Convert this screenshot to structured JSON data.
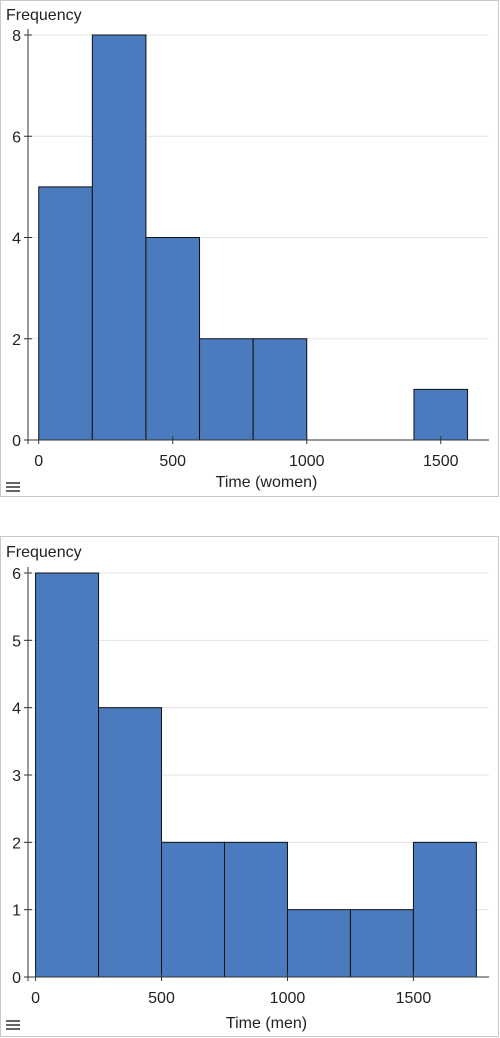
{
  "chart_data": [
    {
      "type": "bar",
      "subtype": "histogram",
      "ylabel": "Frequency",
      "xlabel": "Time (women)",
      "bin_edges": [
        0,
        200,
        400,
        600,
        800,
        1000,
        1200,
        1400,
        1600
      ],
      "values": [
        5,
        8,
        4,
        2,
        2,
        0,
        0,
        1
      ],
      "xlim": [
        -40,
        1680
      ],
      "ylim": [
        0,
        8
      ],
      "x_ticks": [
        "0",
        "500",
        "1000",
        "1500"
      ],
      "y_ticks": [
        "0",
        "2",
        "4",
        "6",
        "8"
      ],
      "grid": true,
      "bar_color": "#4a7bbf"
    },
    {
      "type": "bar",
      "subtype": "histogram",
      "ylabel": "Frequency",
      "xlabel": "Time (men)",
      "bin_edges": [
        0,
        250,
        500,
        750,
        1000,
        1250,
        1500,
        1750
      ],
      "values": [
        6,
        4,
        2,
        2,
        1,
        1,
        2
      ],
      "xlim": [
        -30,
        1800
      ],
      "ylim": [
        0,
        6
      ],
      "x_ticks": [
        "0",
        "500",
        "1000",
        "1500"
      ],
      "y_ticks": [
        "0",
        "1",
        "2",
        "3",
        "4",
        "5",
        "6"
      ],
      "grid": true,
      "bar_color": "#4a7bbf"
    }
  ],
  "menu_icon": "hamburger-menu-icon"
}
